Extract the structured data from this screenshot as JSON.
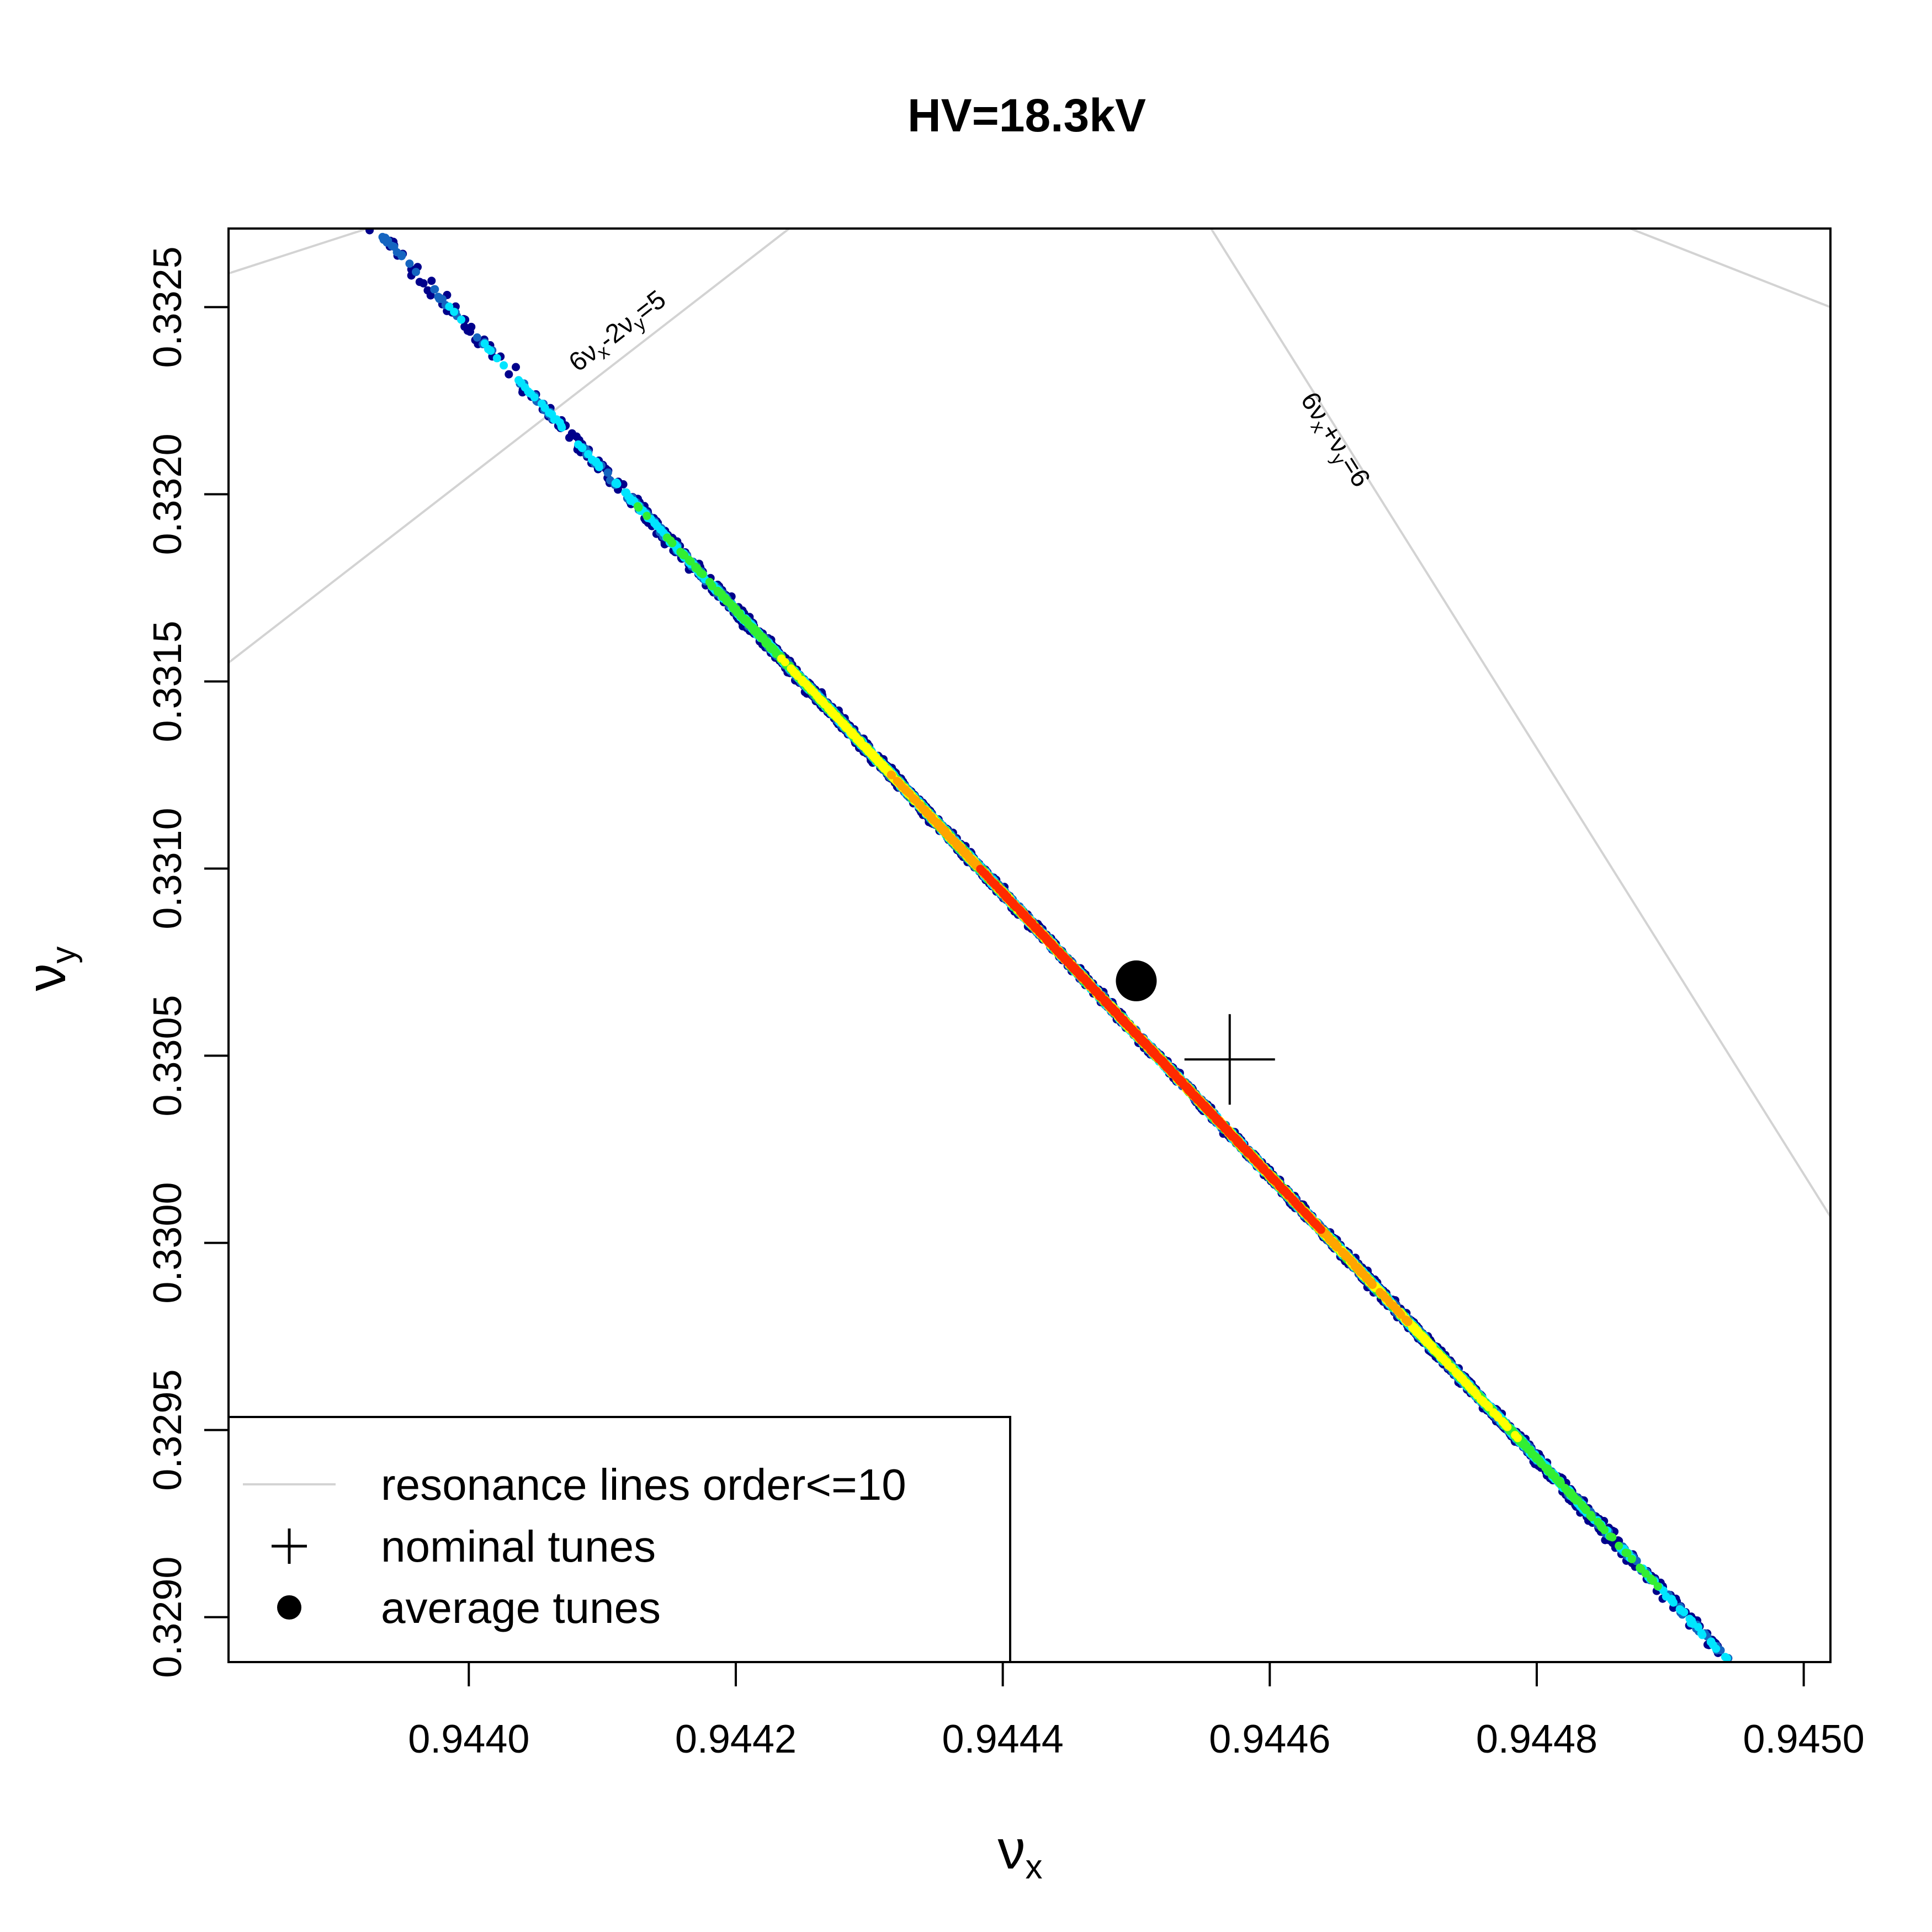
{
  "chart_data": {
    "type": "scatter",
    "title": "HV=18.3kV",
    "xlabel": "ν",
    "xlabel_sub": "x",
    "ylabel": "ν",
    "ylabel_sub": "y",
    "xlim": [
      0.94382,
      0.94502
    ],
    "ylim": [
      0.32888,
      0.33271
    ],
    "x_ticks": [
      0.944,
      0.9442,
      0.9444,
      0.9446,
      0.9448,
      0.945
    ],
    "x_tick_labels": [
      "0.9440",
      "0.9442",
      "0.9444",
      "0.9446",
      "0.9448",
      "0.9450"
    ],
    "y_ticks": [
      0.329,
      0.3295,
      0.33,
      0.3305,
      0.331,
      0.3315,
      0.332,
      0.3325
    ],
    "y_tick_labels": [
      "0.3290",
      "0.3295",
      "0.3300",
      "0.3305",
      "0.3310",
      "0.3315",
      "0.3320",
      "0.3325"
    ],
    "grid": false,
    "colormap": [
      "#00008b",
      "#1565c0",
      "#00e5ff",
      "#33ee33",
      "#ffff00",
      "#ffa500",
      "#ff2a00"
    ],
    "distribution": {
      "center": [
        0.94451,
        0.33052
      ],
      "direction": [
        0.000596,
        -0.00225
      ],
      "core_half_length": 0.5,
      "outer_half_length": 1.02,
      "width_sigma": 0.000115,
      "point_count": 5500
    },
    "series": [
      {
        "name": "nominal tunes",
        "marker": "plus",
        "x": [
          0.94457
        ],
        "y": [
          0.33049
        ]
      },
      {
        "name": "average tunes",
        "marker": "filled-circle",
        "x": [
          0.9445
        ],
        "y": [
          0.3307
        ]
      }
    ],
    "resonance_lines": [
      {
        "label_main": "6ν",
        "label_sub1": "x",
        "label_mid": "-2ν",
        "label_sub2": "y",
        "label_end": "=5",
        "color": "#d3d3d3",
        "segments": [
          [
            [
              0.94382,
              0.33155
            ],
            [
              0.94424,
              0.33271
            ]
          ],
          [
            [
              0.94382,
              0.33259
            ],
            [
              0.943924,
              0.33271
            ]
          ]
        ]
      },
      {
        "label_main": "6ν",
        "label_sub1": "x",
        "label_mid": "+ν",
        "label_sub2": "y",
        "label_end": "=6",
        "color": "#d3d3d3",
        "segments": [
          [
            [
              0.944556,
              0.33271
            ],
            [
              0.94502,
              0.33007
            ]
          ],
          [
            [
              0.94487,
              0.33271
            ],
            [
              0.94502,
              0.3325
            ]
          ]
        ]
      }
    ],
    "legend": {
      "placement": "bottom-left",
      "entries": [
        {
          "label": "resonance lines order<=10",
          "symbol": "line",
          "color": "#d3d3d3"
        },
        {
          "label": "nominal tunes",
          "symbol": "plus",
          "color": "#000000"
        },
        {
          "label": "average tunes",
          "symbol": "filled-circle",
          "color": "#000000"
        }
      ]
    }
  }
}
